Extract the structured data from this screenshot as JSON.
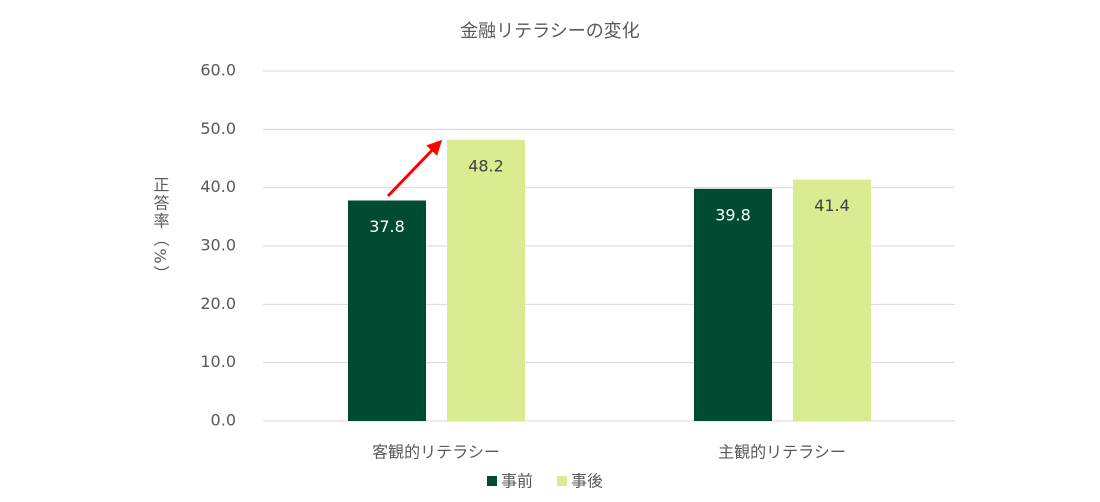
{
  "chart_data": {
    "type": "bar",
    "title": "金融リテラシーの変化",
    "y_label": "正答率（%）",
    "categories": [
      "客観的リテラシー",
      "主観的リテラシー"
    ],
    "series": [
      {
        "name": "事前",
        "color": "#004b32",
        "values": [
          37.8,
          39.8
        ]
      },
      {
        "name": "事後",
        "color": "#d9ec92",
        "values": [
          48.2,
          41.4
        ]
      }
    ],
    "ylim": [
      0,
      60
    ],
    "yticks": [
      {
        "value": 0,
        "label": "0.0"
      },
      {
        "value": 10,
        "label": "10.0"
      },
      {
        "value": 20,
        "label": "20.0"
      },
      {
        "value": 30,
        "label": "30.0"
      },
      {
        "value": 40,
        "label": "40.0"
      },
      {
        "value": 50,
        "label": "50.0"
      },
      {
        "value": 60,
        "label": "60.0"
      }
    ],
    "grid": true,
    "legend": "bottom"
  }
}
